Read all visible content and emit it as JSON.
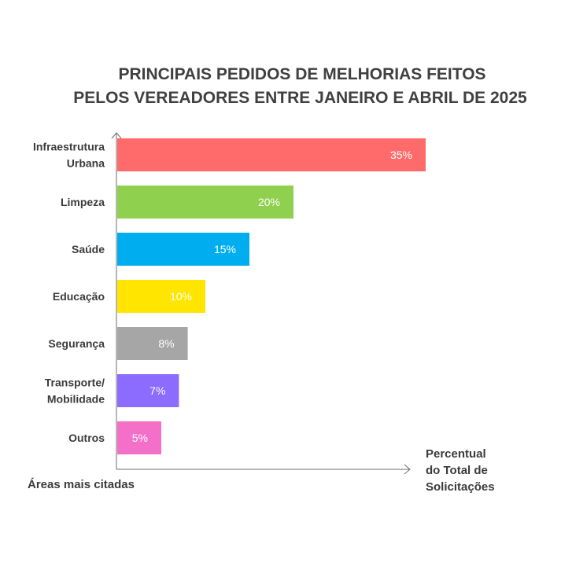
{
  "chart_data": {
    "type": "bar",
    "orientation": "horizontal",
    "title_lines": [
      "PRINCIPAIS PEDIDOS DE MELHORIAS FEITOS",
      "PELOS VEREADORES ENTRE JANEIRO E ABRIL DE 2025"
    ],
    "xlabel_lines": [
      "Percentual",
      "do Total de",
      "Solicitações"
    ],
    "ylabel": "Áreas mais citadas",
    "xlim": [
      0,
      45
    ],
    "grid": false,
    "categories": [
      [
        "Infraestrutura",
        "Urbana"
      ],
      [
        "Limpeza"
      ],
      [
        "Saúde"
      ],
      [
        "Educação"
      ],
      [
        "Segurança"
      ],
      [
        "Transporte/",
        "Mobilidade"
      ],
      [
        "Outros"
      ]
    ],
    "values": [
      35,
      20,
      15,
      10,
      8,
      7,
      5
    ],
    "value_labels": [
      "35%",
      "20%",
      "15%",
      "10%",
      "8%",
      "7%",
      "5%"
    ],
    "colors": [
      "#ff6b6b",
      "#8fd14f",
      "#00aeef",
      "#ffe500",
      "#a6a6a6",
      "#8b6cff",
      "#f46fc8"
    ]
  }
}
